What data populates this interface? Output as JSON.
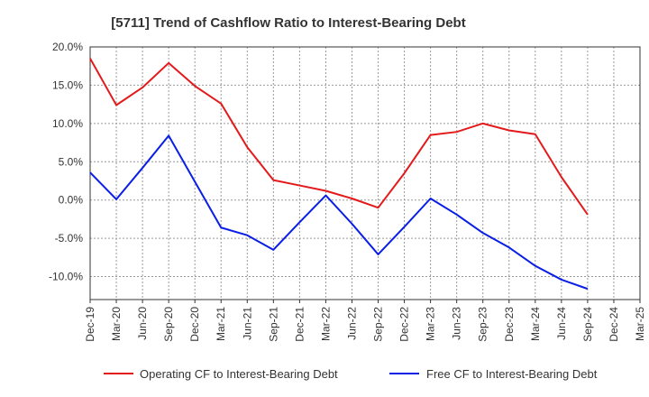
{
  "chart_data": {
    "type": "line",
    "title": "[5711]  Trend of Cashflow Ratio to Interest-Bearing Debt",
    "categories": [
      "Dec-19",
      "Mar-20",
      "Jun-20",
      "Sep-20",
      "Dec-20",
      "Mar-21",
      "Jun-21",
      "Sep-21",
      "Dec-21",
      "Mar-22",
      "Jun-22",
      "Sep-22",
      "Dec-22",
      "Mar-23",
      "Jun-23",
      "Sep-23",
      "Dec-23",
      "Mar-24",
      "Jun-24",
      "Sep-24",
      "Dec-24",
      "Mar-25"
    ],
    "y_ticks": [
      "20.0%",
      "15.0%",
      "10.0%",
      "5.0%",
      "0.0%",
      "-5.0%",
      "-10.0%"
    ],
    "ylim": [
      -13,
      20
    ],
    "grid": true,
    "legend_position": "bottom",
    "series": [
      {
        "name": "Operating CF to Interest-Bearing Debt",
        "color": "#e31a1c",
        "values": [
          18.5,
          12.4,
          14.7,
          17.9,
          14.9,
          12.6,
          6.9,
          2.6,
          1.9,
          1.2,
          0.2,
          -1.0,
          3.5,
          8.5,
          8.9,
          10.0,
          9.1,
          8.6,
          3.0,
          -1.9,
          null,
          null
        ]
      },
      {
        "name": "Free CF to Interest-Bearing Debt",
        "color": "#0a1ee6",
        "values": [
          3.6,
          0.1,
          4.2,
          8.4,
          2.4,
          -3.6,
          -4.6,
          -6.5,
          -2.9,
          0.6,
          -3.1,
          -7.1,
          -3.5,
          0.2,
          -1.9,
          -4.3,
          -6.2,
          -8.6,
          -10.4,
          -11.6,
          null,
          null
        ]
      }
    ]
  }
}
